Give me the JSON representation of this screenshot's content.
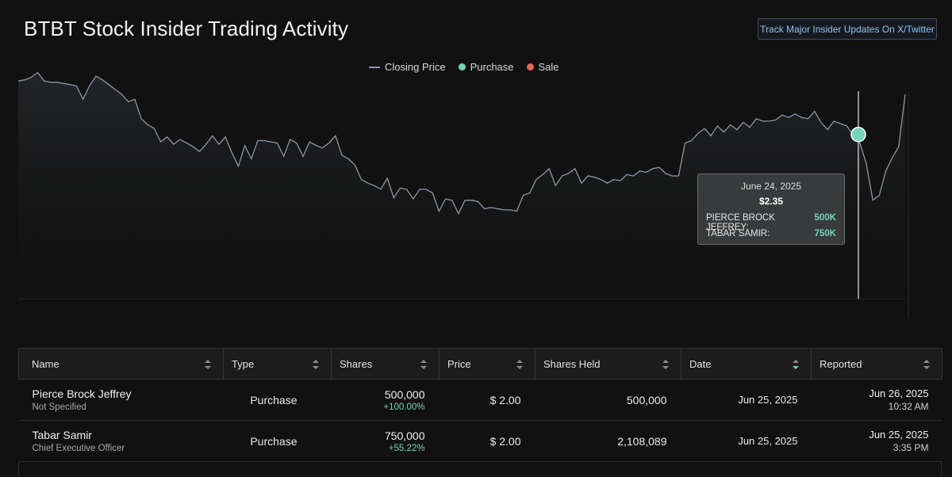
{
  "page": {
    "title": "BTBT Stock Insider Trading Activity",
    "track_button": "Track Major Insider Updates On X/Twitter"
  },
  "legend": [
    {
      "label": "Closing Price",
      "kind": "line",
      "color": "#8a96a8"
    },
    {
      "label": "Purchase",
      "kind": "dot",
      "color": "#72d5b9"
    },
    {
      "label": "Sale",
      "kind": "dot",
      "color": "#e8685a"
    }
  ],
  "chart_data": {
    "type": "line",
    "series": [
      {
        "name": "Closing Price",
        "values": [
          2.79,
          2.8,
          2.82,
          2.86,
          2.79,
          2.78,
          2.78,
          2.77,
          2.76,
          2.75,
          2.64,
          2.75,
          2.83,
          2.8,
          2.76,
          2.72,
          2.68,
          2.62,
          2.64,
          2.48,
          2.43,
          2.4,
          2.29,
          2.33,
          2.27,
          2.31,
          2.28,
          2.25,
          2.21,
          2.27,
          2.34,
          2.27,
          2.33,
          2.2,
          2.09,
          2.26,
          2.15,
          2.3,
          2.3,
          2.29,
          2.28,
          2.17,
          2.31,
          2.28,
          2.17,
          2.29,
          2.26,
          2.24,
          2.28,
          2.34,
          2.18,
          2.15,
          2.1,
          1.98,
          1.95,
          1.93,
          1.9,
          1.99,
          1.83,
          1.91,
          1.9,
          1.82,
          1.9,
          1.9,
          1.87,
          1.72,
          1.82,
          1.81,
          1.7,
          1.81,
          1.81,
          1.8,
          1.74,
          1.75,
          1.74,
          1.73,
          1.73,
          1.72,
          1.85,
          1.87,
          1.98,
          2.02,
          2.07,
          1.93,
          2.01,
          2.03,
          2.07,
          1.95,
          2.01,
          2.0,
          1.98,
          1.95,
          1.98,
          1.97,
          2.02,
          2.01,
          2.05,
          2.04,
          2.07,
          2.08,
          2.03,
          2.01,
          2.01,
          2.28,
          2.3,
          2.36,
          2.4,
          2.34,
          2.42,
          2.37,
          2.43,
          2.39,
          2.45,
          2.41,
          2.48,
          2.46,
          2.46,
          2.47,
          2.51,
          2.49,
          2.52,
          2.49,
          2.48,
          2.54,
          2.45,
          2.39,
          2.46,
          2.44,
          2.42,
          2.34,
          2.28,
          2.11,
          1.81,
          1.85,
          2.05,
          2.16,
          2.25,
          2.68
        ]
      }
    ],
    "purchase_markers": [
      {
        "date": "June 24, 2025",
        "price": 2.35
      }
    ],
    "sale_markers": [],
    "ylim": [
      1.0,
      3.0
    ],
    "tooltip": {
      "date": "June 24, 2025",
      "price": "$2.35",
      "rows": [
        {
          "name": "PIERCE BROCK JEFFREY:",
          "amount": "500K"
        },
        {
          "name": "TABAR SAMIR:",
          "amount": "750K"
        }
      ]
    }
  },
  "table": {
    "columns": [
      "Name",
      "Type",
      "Shares",
      "Price",
      "Shares Held",
      "Date",
      "Reported"
    ],
    "rows": [
      {
        "name": "Pierce Brock Jeffrey",
        "role": "Not Specified",
        "type": "Purchase",
        "shares": "500,000",
        "change": "+100.00%",
        "price": "$ 2.00",
        "held": "500,000",
        "date": "Jun 25, 2025",
        "reported_date": "Jun 26, 2025",
        "reported_time": "10:32 AM"
      },
      {
        "name": "Tabar Samir",
        "role": "Chief Executive Officer",
        "type": "Purchase",
        "shares": "750,000",
        "change": "+55.22%",
        "price": "$ 2.00",
        "held": "2,108,089",
        "date": "Jun 25, 2025",
        "reported_date": "Jun 25, 2025",
        "reported_time": "3:35 PM"
      }
    ]
  }
}
